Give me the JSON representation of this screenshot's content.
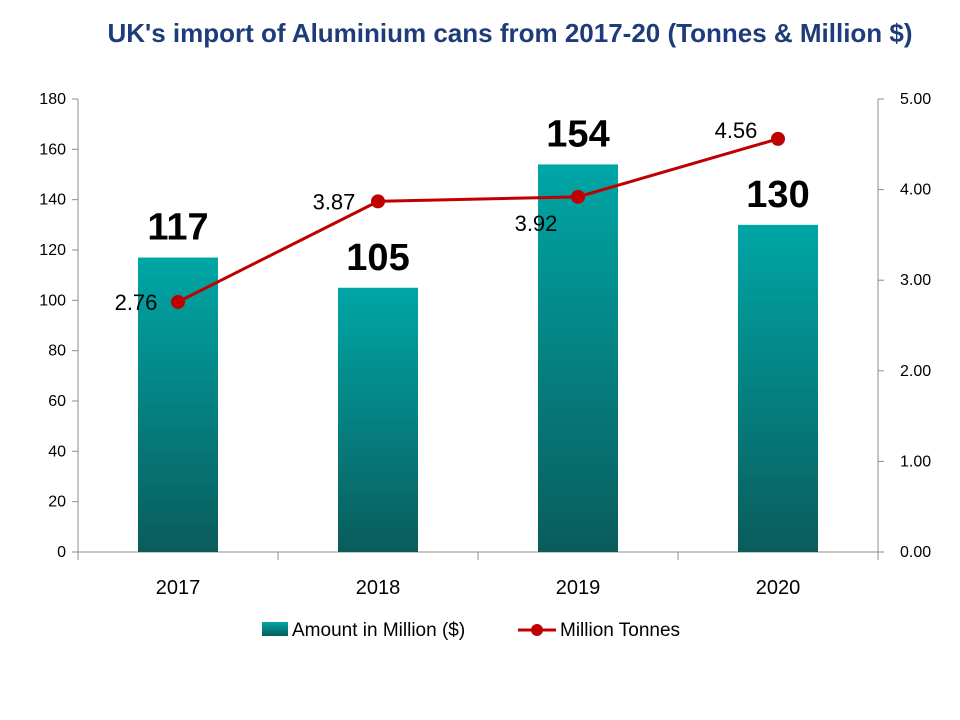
{
  "chart_data": {
    "title": "UK's import of Aluminium cans from 2017-20 (Tonnes & Million $)",
    "type": "bar",
    "categories": [
      "2017",
      "2018",
      "2019",
      "2020"
    ],
    "series": [
      {
        "name": "Amount in Million ($)",
        "type": "bar",
        "axis": "left",
        "values": [
          117,
          105,
          154,
          130
        ],
        "labels": [
          "117",
          "105",
          "154",
          "130"
        ],
        "color": "#0b8a8a"
      },
      {
        "name": "Million Tonnes",
        "type": "line",
        "axis": "right",
        "values": [
          2.76,
          3.87,
          3.92,
          4.56
        ],
        "labels": [
          "2.76",
          "3.87",
          "3.92",
          "4.56"
        ],
        "color": "#c00000"
      }
    ],
    "y_left": {
      "min": 0,
      "max": 180,
      "step": 20,
      "ticks": [
        "0",
        "20",
        "40",
        "60",
        "80",
        "100",
        "120",
        "140",
        "160",
        "180"
      ]
    },
    "y_right": {
      "min": 0,
      "max": 5,
      "step": 1,
      "ticks": [
        "0.00",
        "1.00",
        "2.00",
        "3.00",
        "4.00",
        "5.00"
      ]
    },
    "grid": false,
    "legend_position": "bottom"
  }
}
